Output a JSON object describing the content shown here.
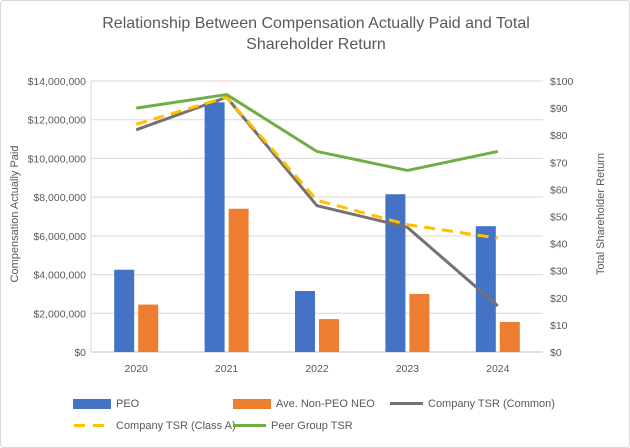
{
  "chart_data": {
    "type": "combo",
    "title": "Relationship Between Compensation Actually Paid and Total Shareholder Return",
    "categories": [
      "2020",
      "2021",
      "2022",
      "2023",
      "2024"
    ],
    "bar_series": [
      {
        "name": "PEO",
        "color": "#4472C4",
        "axis": "left",
        "values": [
          4250000,
          12900000,
          3150000,
          8150000,
          6500000
        ]
      },
      {
        "name": "Ave. Non-PEO NEO",
        "color": "#ED7D31",
        "axis": "left",
        "values": [
          2450000,
          7400000,
          1700000,
          3000000,
          1550000
        ]
      }
    ],
    "line_series": [
      {
        "name": "Company TSR (Common)",
        "color": "#757171",
        "dash": false,
        "axis": "right",
        "values": [
          82,
          94,
          54,
          46,
          17
        ]
      },
      {
        "name": "Company TSR (Class A)",
        "color": "#FFC000",
        "dash": true,
        "axis": "right",
        "values": [
          84,
          94,
          56,
          47,
          42
        ]
      },
      {
        "name": "Peer Group TSR",
        "color": "#70AD47",
        "dash": false,
        "axis": "right",
        "values": [
          90,
          95,
          74,
          67,
          74
        ]
      }
    ],
    "left_axis": {
      "label": "Compensation Actually Paid",
      "min": 0,
      "max": 14000000,
      "tick_labels": [
        "$0",
        "$2,000,000",
        "$4,000,000",
        "$6,000,000",
        "$8,000,000",
        "$10,000,000",
        "$12,000,000",
        "$14,000,000"
      ]
    },
    "right_axis": {
      "label": "Total Shareholder Return",
      "min": 0,
      "max": 100,
      "tick_labels": [
        "$0",
        "$10",
        "$20",
        "$30",
        "$40",
        "$50",
        "$60",
        "$70",
        "$80",
        "$90",
        "$100"
      ]
    },
    "grid": true,
    "legend": {
      "position": "bottom",
      "items": [
        {
          "label": "PEO",
          "swatch": "bar",
          "color": "#4472C4"
        },
        {
          "label": "Ave. Non-PEO NEO",
          "swatch": "bar",
          "color": "#ED7D31"
        },
        {
          "label": "Company TSR (Common)",
          "swatch": "line",
          "color": "#757171"
        },
        {
          "label": "Company TSR (Class A)",
          "swatch": "dashed-line",
          "color": "#FFC000"
        },
        {
          "label": "Peer Group TSR",
          "swatch": "line",
          "color": "#70AD47"
        }
      ]
    },
    "style": {
      "gridline_color": "#D9D9D9",
      "axis_line_color": "#BFBFBF",
      "text_color": "#595959"
    }
  }
}
